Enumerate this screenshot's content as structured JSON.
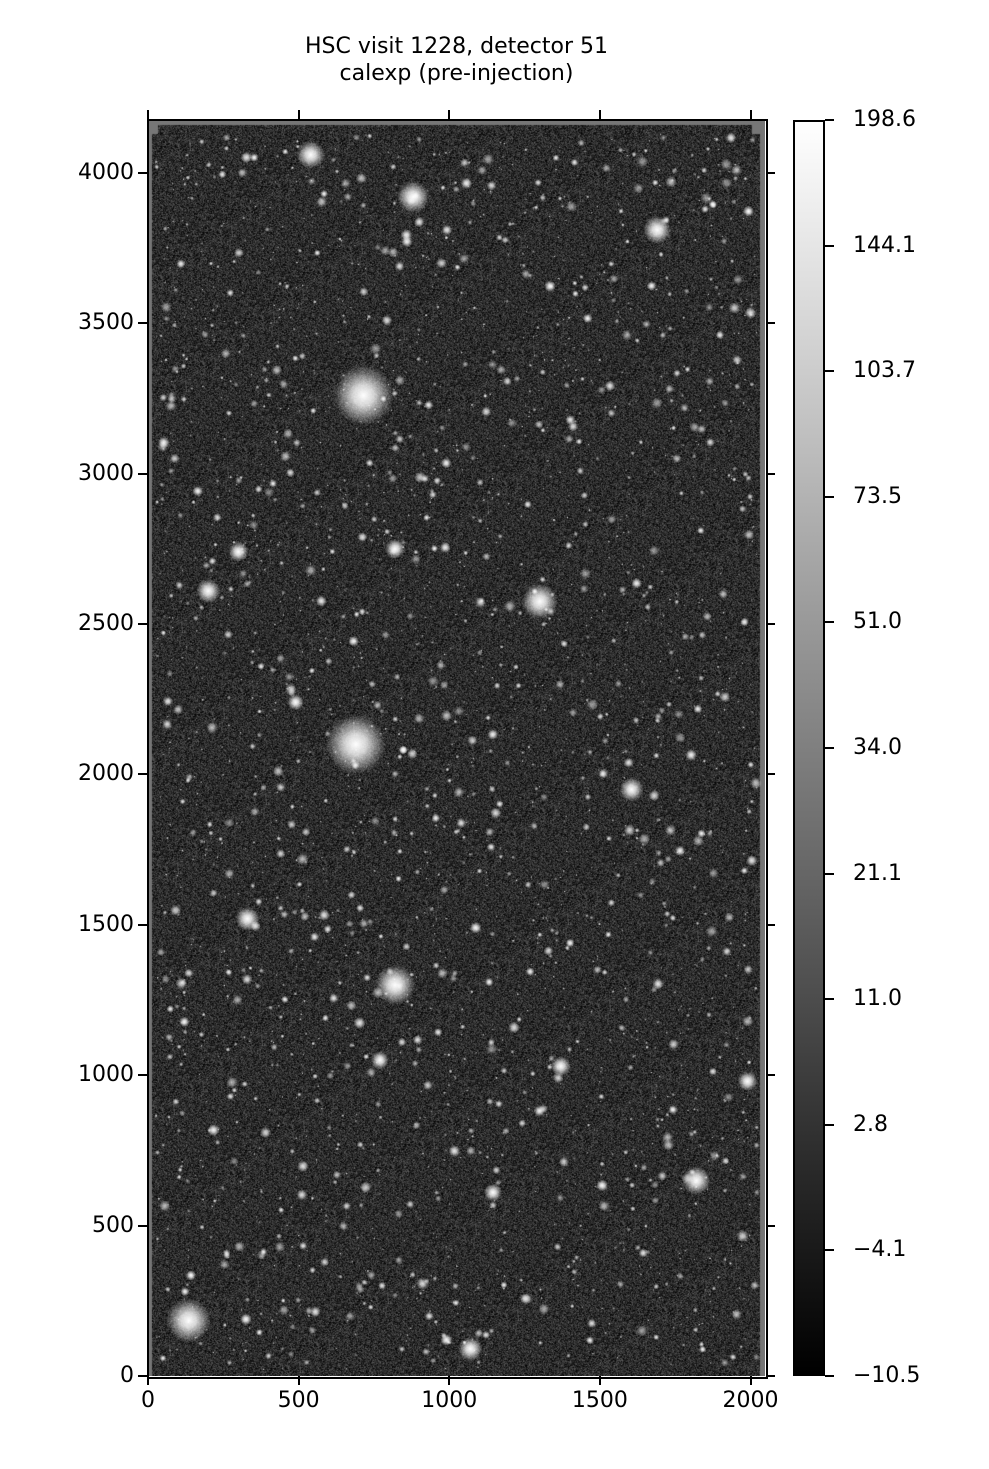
{
  "chart_data": {
    "type": "heatmap",
    "title": "HSC visit 1228, detector 51",
    "subtitle": "calexp (pre-injection)",
    "xlabel": "",
    "ylabel": "",
    "xlim": [
      0,
      2048
    ],
    "ylim": [
      0,
      4176
    ],
    "xticks": [
      "0",
      "500",
      "1000",
      "1500",
      "2000"
    ],
    "xtick_values": [
      0,
      500,
      1000,
      1500,
      2000
    ],
    "yticks": [
      "0",
      "500",
      "1000",
      "1500",
      "2000",
      "2500",
      "3000",
      "3500",
      "4000"
    ],
    "ytick_values": [
      0,
      500,
      1000,
      1500,
      2000,
      2500,
      3000,
      3500,
      4000
    ],
    "colormap": "gray",
    "colorbar": {
      "stretch": "asinh",
      "range": [
        -10.5,
        198.6
      ],
      "ticks": [
        "−10.5",
        "−4.1",
        "2.8",
        "11.0",
        "21.1",
        "34.0",
        "51.0",
        "73.5",
        "103.7",
        "144.1",
        "198.6"
      ]
    },
    "grid": false
  }
}
